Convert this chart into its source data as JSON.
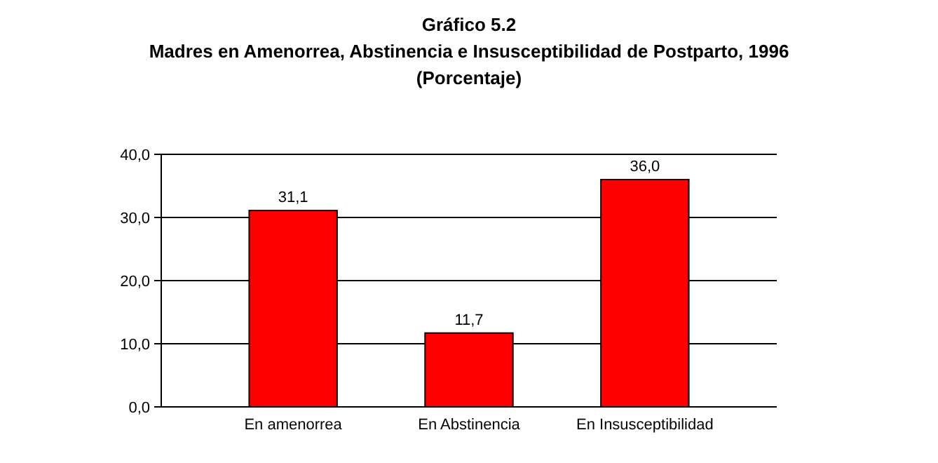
{
  "chart_data": {
    "type": "bar",
    "title": "Gráfico 5.2",
    "subtitle": "Madres en Amenorrea, Abstinencia e Insusceptibilidad de Postparto, 1996",
    "annotations": [
      "(Porcentaje)"
    ],
    "categories": [
      "En amenorrea",
      "En Abstinencia",
      "En Insusceptibilidad"
    ],
    "values": [
      31.1,
      11.7,
      36.0
    ],
    "value_labels": [
      "31,1",
      "11,7",
      "36,0"
    ],
    "color": "#ff0000",
    "ylim": [
      0,
      40
    ],
    "yticks": [
      {
        "value": 0,
        "label": "0,0"
      },
      {
        "value": 10,
        "label": "10,0"
      },
      {
        "value": 20,
        "label": "20,0"
      },
      {
        "value": 30,
        "label": "30,0"
      },
      {
        "value": 40,
        "label": "40,0"
      }
    ],
    "grid": "y"
  }
}
